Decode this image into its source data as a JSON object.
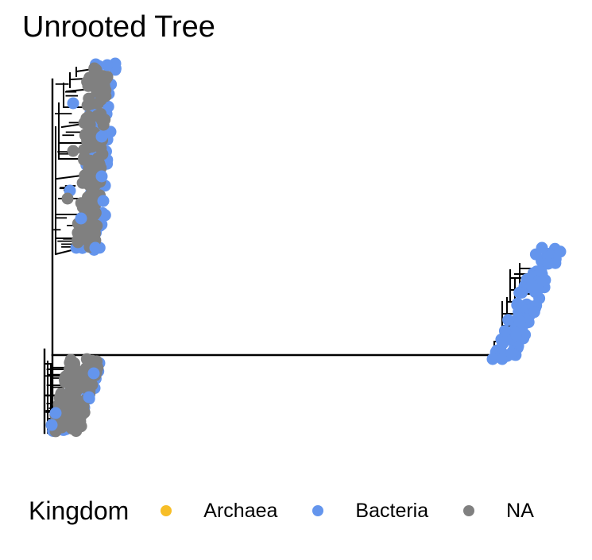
{
  "title": "Unrooted Tree",
  "legend": {
    "title": "Kingdom",
    "items": [
      {
        "label": "Archaea",
        "color": "#F7BE27"
      },
      {
        "label": "Bacteria",
        "color": "#6495ED"
      },
      {
        "label": "NA",
        "color": "#808080"
      }
    ]
  },
  "colors": {
    "branch": "#000000",
    "archaea": "#F7BE27",
    "bacteria": "#6495ED",
    "na": "#808080"
  }
}
